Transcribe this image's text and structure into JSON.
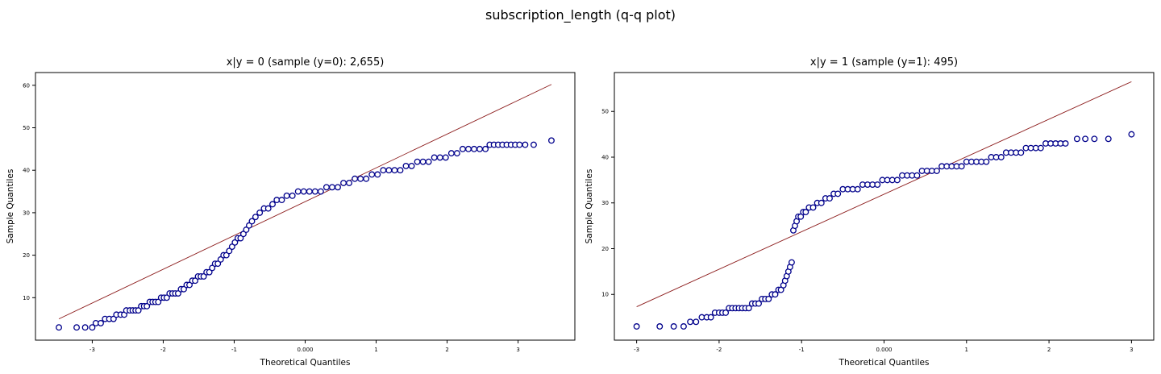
{
  "figure": {
    "suptitle": "subscription_length (q-q plot)"
  },
  "colors": {
    "marker_edge": "#00008b",
    "marker_fill": "#ffffff",
    "line": "#8b1a1a",
    "axes": "#000000"
  },
  "chart_data": [
    {
      "type": "scatter",
      "title": "x|y = 0 (sample (y=0): 2,655)",
      "xlabel": "Theoretical Quantiles",
      "ylabel": "Sample Quantiles",
      "xlim": [
        -3.8,
        3.8
      ],
      "ylim": [
        0,
        63
      ],
      "xticks": [
        -3,
        -2,
        -1,
        0,
        1,
        2,
        3
      ],
      "xtick_labels": [
        "-3",
        "-2",
        "-1",
        "0.000",
        "1",
        "2",
        "3"
      ],
      "yticks": [
        10,
        20,
        30,
        40,
        50,
        60
      ],
      "ytick_labels": [
        "10",
        "20",
        "30",
        "40",
        "50",
        "60"
      ],
      "reference_line": {
        "x": [
          -3.47,
          3.47
        ],
        "y": [
          5.0,
          60.2
        ]
      },
      "series": [
        {
          "marker": "o",
          "points": [
            [
              -3.47,
              3
            ],
            [
              -3.22,
              3
            ],
            [
              -3.1,
              3
            ],
            [
              -3.0,
              3
            ],
            [
              -2.95,
              4
            ],
            [
              -2.88,
              4
            ],
            [
              -2.82,
              5
            ],
            [
              -2.76,
              5
            ],
            [
              -2.7,
              5
            ],
            [
              -2.66,
              6
            ],
            [
              -2.6,
              6
            ],
            [
              -2.55,
              6
            ],
            [
              -2.52,
              7
            ],
            [
              -2.47,
              7
            ],
            [
              -2.43,
              7
            ],
            [
              -2.39,
              7
            ],
            [
              -2.35,
              7
            ],
            [
              -2.31,
              8
            ],
            [
              -2.27,
              8
            ],
            [
              -2.23,
              8
            ],
            [
              -2.19,
              9
            ],
            [
              -2.15,
              9
            ],
            [
              -2.11,
              9
            ],
            [
              -2.07,
              9
            ],
            [
              -2.03,
              10
            ],
            [
              -1.99,
              10
            ],
            [
              -1.95,
              10
            ],
            [
              -1.91,
              11
            ],
            [
              -1.87,
              11
            ],
            [
              -1.83,
              11
            ],
            [
              -1.79,
              11
            ],
            [
              -1.75,
              12
            ],
            [
              -1.71,
              12
            ],
            [
              -1.67,
              13
            ],
            [
              -1.63,
              13
            ],
            [
              -1.59,
              14
            ],
            [
              -1.55,
              14
            ],
            [
              -1.51,
              15
            ],
            [
              -1.47,
              15
            ],
            [
              -1.43,
              15
            ],
            [
              -1.39,
              16
            ],
            [
              -1.35,
              16
            ],
            [
              -1.31,
              17
            ],
            [
              -1.27,
              18
            ],
            [
              -1.23,
              18
            ],
            [
              -1.19,
              19
            ],
            [
              -1.15,
              20
            ],
            [
              -1.11,
              20
            ],
            [
              -1.07,
              21
            ],
            [
              -1.03,
              22
            ],
            [
              -0.99,
              23
            ],
            [
              -0.95,
              24
            ],
            [
              -0.91,
              24
            ],
            [
              -0.87,
              25
            ],
            [
              -0.83,
              26
            ],
            [
              -0.79,
              27
            ],
            [
              -0.75,
              28
            ],
            [
              -0.7,
              29
            ],
            [
              -0.64,
              30
            ],
            [
              -0.58,
              31
            ],
            [
              -0.52,
              31
            ],
            [
              -0.46,
              32
            ],
            [
              -0.4,
              33
            ],
            [
              -0.33,
              33
            ],
            [
              -0.26,
              34
            ],
            [
              -0.18,
              34
            ],
            [
              -0.1,
              35
            ],
            [
              -0.02,
              35
            ],
            [
              0.06,
              35
            ],
            [
              0.14,
              35
            ],
            [
              0.22,
              35
            ],
            [
              0.3,
              36
            ],
            [
              0.38,
              36
            ],
            [
              0.46,
              36
            ],
            [
              0.54,
              37
            ],
            [
              0.62,
              37
            ],
            [
              0.7,
              38
            ],
            [
              0.78,
              38
            ],
            [
              0.86,
              38
            ],
            [
              0.94,
              39
            ],
            [
              1.02,
              39
            ],
            [
              1.1,
              40
            ],
            [
              1.18,
              40
            ],
            [
              1.26,
              40
            ],
            [
              1.34,
              40
            ],
            [
              1.42,
              41
            ],
            [
              1.5,
              41
            ],
            [
              1.58,
              42
            ],
            [
              1.66,
              42
            ],
            [
              1.74,
              42
            ],
            [
              1.82,
              43
            ],
            [
              1.9,
              43
            ],
            [
              1.98,
              43
            ],
            [
              2.06,
              44
            ],
            [
              2.14,
              44
            ],
            [
              2.22,
              45
            ],
            [
              2.3,
              45
            ],
            [
              2.38,
              45
            ],
            [
              2.46,
              45
            ],
            [
              2.54,
              45
            ],
            [
              2.6,
              46
            ],
            [
              2.66,
              46
            ],
            [
              2.72,
              46
            ],
            [
              2.78,
              46
            ],
            [
              2.84,
              46
            ],
            [
              2.9,
              46
            ],
            [
              2.96,
              46
            ],
            [
              3.02,
              46
            ],
            [
              3.1,
              46
            ],
            [
              3.22,
              46
            ],
            [
              3.47,
              47
            ]
          ]
        }
      ]
    },
    {
      "type": "scatter",
      "title": "x|y = 1 (sample (y=1): 495)",
      "xlabel": "Theoretical Quantiles",
      "ylabel": "Sample Quantiles",
      "xlim": [
        -3.27,
        3.27
      ],
      "ylim": [
        0,
        58.5
      ],
      "xticks": [
        -3,
        -2,
        -1,
        0,
        1,
        2,
        3
      ],
      "xtick_labels": [
        "-3",
        "-2",
        "-1",
        "0.000",
        "1",
        "2",
        "3"
      ],
      "yticks": [
        10,
        20,
        30,
        40,
        50
      ],
      "ytick_labels": [
        "10",
        "20",
        "30",
        "40",
        "50"
      ],
      "reference_line": {
        "x": [
          -3.0,
          3.0
        ],
        "y": [
          7.3,
          56.5
        ]
      },
      "series": [
        {
          "marker": "o",
          "points": [
            [
              -3.0,
              3
            ],
            [
              -2.72,
              3
            ],
            [
              -2.55,
              3
            ],
            [
              -2.43,
              3
            ],
            [
              -2.35,
              4
            ],
            [
              -2.28,
              4
            ],
            [
              -2.21,
              5
            ],
            [
              -2.15,
              5
            ],
            [
              -2.1,
              5
            ],
            [
              -2.05,
              6
            ],
            [
              -2.0,
              6
            ],
            [
              -1.96,
              6
            ],
            [
              -1.92,
              6
            ],
            [
              -1.88,
              7
            ],
            [
              -1.84,
              7
            ],
            [
              -1.8,
              7
            ],
            [
              -1.76,
              7
            ],
            [
              -1.72,
              7
            ],
            [
              -1.68,
              7
            ],
            [
              -1.64,
              7
            ],
            [
              -1.6,
              8
            ],
            [
              -1.56,
              8
            ],
            [
              -1.52,
              8
            ],
            [
              -1.48,
              9
            ],
            [
              -1.44,
              9
            ],
            [
              -1.4,
              9
            ],
            [
              -1.36,
              10
            ],
            [
              -1.32,
              10
            ],
            [
              -1.28,
              11
            ],
            [
              -1.25,
              11
            ],
            [
              -1.22,
              12
            ],
            [
              -1.2,
              13
            ],
            [
              -1.18,
              14
            ],
            [
              -1.16,
              15
            ],
            [
              -1.14,
              16
            ],
            [
              -1.12,
              17
            ],
            [
              -1.1,
              24
            ],
            [
              -1.08,
              25
            ],
            [
              -1.06,
              26
            ],
            [
              -1.04,
              27
            ],
            [
              -1.01,
              27
            ],
            [
              -0.98,
              28
            ],
            [
              -0.95,
              28
            ],
            [
              -0.91,
              29
            ],
            [
              -0.86,
              29
            ],
            [
              -0.81,
              30
            ],
            [
              -0.76,
              30
            ],
            [
              -0.71,
              31
            ],
            [
              -0.66,
              31
            ],
            [
              -0.61,
              32
            ],
            [
              -0.56,
              32
            ],
            [
              -0.5,
              33
            ],
            [
              -0.44,
              33
            ],
            [
              -0.38,
              33
            ],
            [
              -0.32,
              33
            ],
            [
              -0.26,
              34
            ],
            [
              -0.2,
              34
            ],
            [
              -0.14,
              34
            ],
            [
              -0.08,
              34
            ],
            [
              -0.02,
              35
            ],
            [
              0.04,
              35
            ],
            [
              0.1,
              35
            ],
            [
              0.16,
              35
            ],
            [
              0.22,
              36
            ],
            [
              0.28,
              36
            ],
            [
              0.34,
              36
            ],
            [
              0.4,
              36
            ],
            [
              0.46,
              37
            ],
            [
              0.52,
              37
            ],
            [
              0.58,
              37
            ],
            [
              0.64,
              37
            ],
            [
              0.7,
              38
            ],
            [
              0.76,
              38
            ],
            [
              0.82,
              38
            ],
            [
              0.88,
              38
            ],
            [
              0.94,
              38
            ],
            [
              1.0,
              39
            ],
            [
              1.06,
              39
            ],
            [
              1.12,
              39
            ],
            [
              1.18,
              39
            ],
            [
              1.24,
              39
            ],
            [
              1.3,
              40
            ],
            [
              1.36,
              40
            ],
            [
              1.42,
              40
            ],
            [
              1.48,
              41
            ],
            [
              1.54,
              41
            ],
            [
              1.6,
              41
            ],
            [
              1.66,
              41
            ],
            [
              1.72,
              42
            ],
            [
              1.78,
              42
            ],
            [
              1.84,
              42
            ],
            [
              1.9,
              42
            ],
            [
              1.96,
              43
            ],
            [
              2.02,
              43
            ],
            [
              2.08,
              43
            ],
            [
              2.14,
              43
            ],
            [
              2.2,
              43
            ],
            [
              2.34,
              44
            ],
            [
              2.44,
              44
            ],
            [
              2.55,
              44
            ],
            [
              2.72,
              44
            ],
            [
              3.0,
              45
            ]
          ]
        }
      ]
    }
  ]
}
